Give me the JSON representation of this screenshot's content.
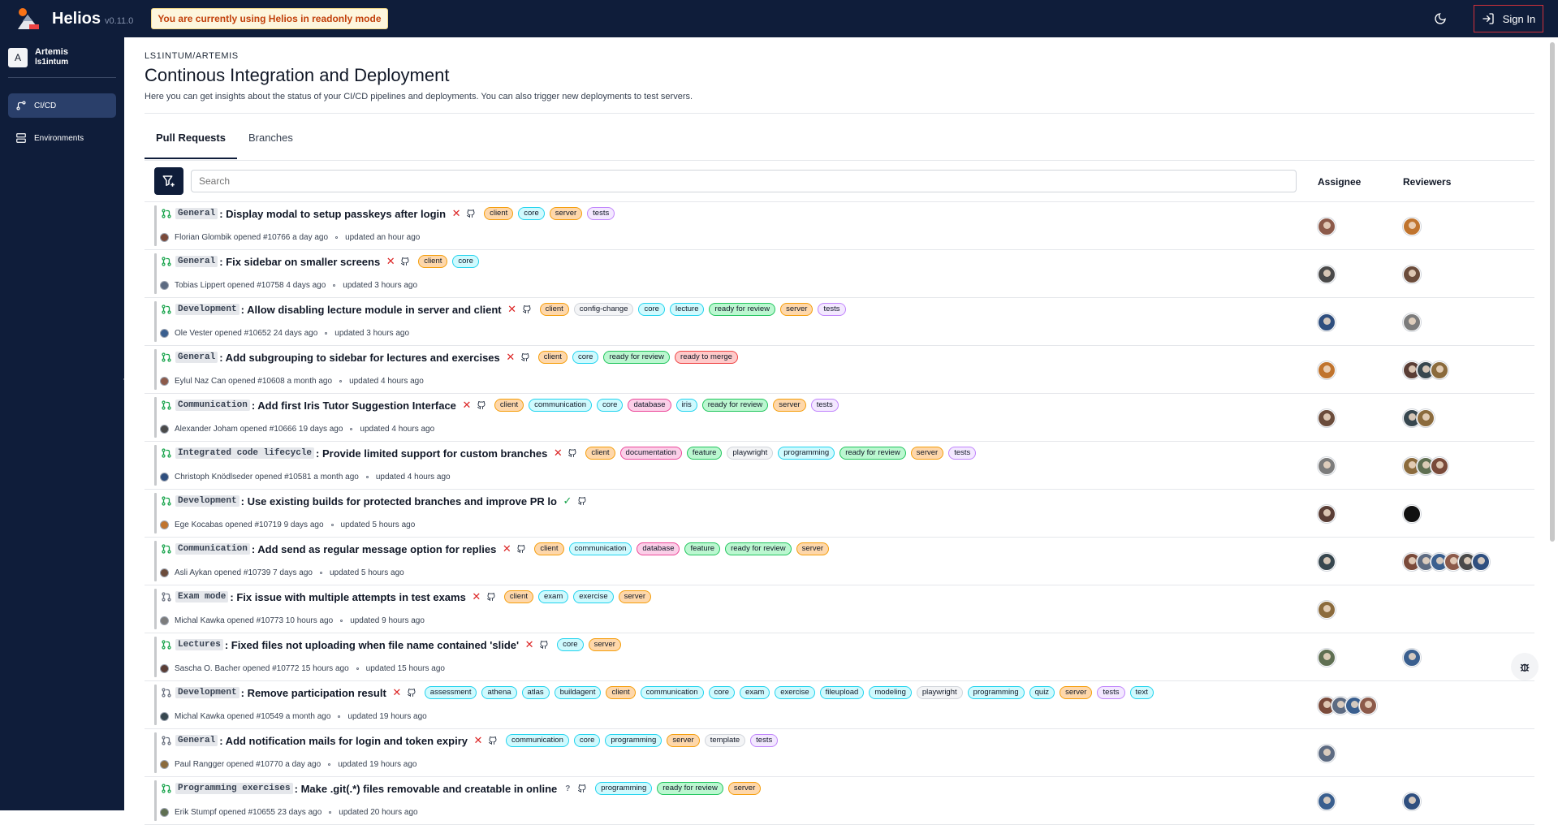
{
  "app": {
    "name": "Helios",
    "version": "v0.11.0",
    "readonly_banner": "You are currently using Helios in readonly mode",
    "signin_label": "Sign In"
  },
  "sidebar": {
    "user_initial": "A",
    "repo_name": "Artemis",
    "repo_owner": "ls1intum",
    "items": [
      {
        "label": "CI/CD",
        "icon": "git-branch-icon",
        "active": true
      },
      {
        "label": "Environments",
        "icon": "server-icon",
        "active": false
      }
    ]
  },
  "page": {
    "breadcrumb": "LS1INTUM/ARTEMIS",
    "title": "Continous Integration and Deployment",
    "description": "Here you can get insights about the status of your CI/CD pipelines and deployments. You can also trigger new deployments to test servers.",
    "tabs": [
      "Pull Requests",
      "Branches"
    ],
    "search_placeholder": "Search",
    "col_assignee": "Assignee",
    "col_reviewers": "Reviewers"
  },
  "label_colors": {
    "client": "#fed7aa",
    "core": "#cffafe",
    "server": "#fed7aa",
    "tests": "#f3e8ff",
    "config-change": "#f3f4f6",
    "lecture": "#cffafe",
    "ready for review": "#bbf7d0",
    "ready to merge": "#fecaca",
    "communication": "#cffafe",
    "database": "#fbcfe8",
    "iris": "#cffafe",
    "documentation": "#fbcfe8",
    "feature": "#bbf7d0",
    "playwright": "#f3f4f6",
    "programming": "#cffafe",
    "exam": "#cffafe",
    "exercise": "#cffafe",
    "assessment": "#cffafe",
    "athena": "#cffafe",
    "atlas": "#cffafe",
    "buildagent": "#cffafe",
    "fileupload": "#cffafe",
    "modeling": "#cffafe",
    "quiz": "#cffafe",
    "text": "#cffafe",
    "template": "#f3f4f6"
  },
  "pull_requests": [
    {
      "scope": "General",
      "title": ": Display modal to setup passkeys after login",
      "status": "fail",
      "labels": [
        "client",
        "core",
        "server",
        "tests"
      ],
      "author": "Florian Glombik",
      "number": "#10766",
      "opened": "a day ago",
      "updated": "updated an hour ago",
      "draft": false,
      "assignees": 1,
      "reviewers": 1
    },
    {
      "scope": "General",
      "title": ": Fix sidebar on smaller screens",
      "status": "fail",
      "labels": [
        "client",
        "core"
      ],
      "author": "Tobias Lippert",
      "number": "#10758",
      "opened": "4 days ago",
      "updated": "updated 3 hours ago",
      "draft": false,
      "assignees": 1,
      "reviewers": 1
    },
    {
      "scope": "Development",
      "title": ": Allow disabling lecture module in server and client",
      "status": "fail",
      "labels": [
        "client",
        "config-change",
        "core",
        "lecture",
        "ready for review",
        "server",
        "tests"
      ],
      "author": "Ole Vester",
      "number": "#10652",
      "opened": "24 days ago",
      "updated": "updated 3 hours ago",
      "draft": false,
      "assignees": 1,
      "reviewers": 1
    },
    {
      "scope": "General",
      "title": ": Add subgrouping to sidebar for lectures and exercises",
      "status": "fail",
      "labels": [
        "client",
        "core",
        "ready for review",
        "ready to merge"
      ],
      "author": "Eylul Naz Can",
      "number": "#10608",
      "opened": "a month ago",
      "updated": "updated 4 hours ago",
      "draft": false,
      "assignees": 1,
      "reviewers": 3
    },
    {
      "scope": "Communication",
      "title": ": Add first Iris Tutor Suggestion Interface",
      "status": "fail",
      "labels": [
        "client",
        "communication",
        "core",
        "database",
        "iris",
        "ready for review",
        "server",
        "tests"
      ],
      "author": "Alexander Joham",
      "number": "#10666",
      "opened": "19 days ago",
      "updated": "updated 4 hours ago",
      "draft": false,
      "assignees": 1,
      "reviewers": 2
    },
    {
      "scope": "Integrated code lifecycle",
      "title": ": Provide limited support for custom branches",
      "status": "fail",
      "labels": [
        "client",
        "documentation",
        "feature",
        "playwright",
        "programming",
        "ready for review",
        "server",
        "tests"
      ],
      "author": "Christoph Knödlseder",
      "number": "#10581",
      "opened": "a month ago",
      "updated": "updated 4 hours ago",
      "draft": false,
      "assignees": 1,
      "reviewers": 3
    },
    {
      "scope": "Development",
      "title": ": Use existing builds for protected branches and improve PR lo",
      "status": "ok",
      "labels": [],
      "author": "Ege Kocabas",
      "number": "#10719",
      "opened": "9 days ago",
      "updated": "updated 5 hours ago",
      "draft": false,
      "assignees": 1,
      "reviewers": 1
    },
    {
      "scope": "Communication",
      "title": ": Add send as regular message option for replies",
      "status": "fail",
      "labels": [
        "client",
        "communication",
        "database",
        "feature",
        "ready for review",
        "server"
      ],
      "author": "Asli Aykan",
      "number": "#10739",
      "opened": "7 days ago",
      "updated": "updated 5 hours ago",
      "draft": false,
      "assignees": 1,
      "reviewers": 6
    },
    {
      "scope": "Exam mode",
      "title": ": Fix issue with multiple attempts in test exams",
      "status": "fail",
      "labels": [
        "client",
        "exam",
        "exercise",
        "server"
      ],
      "author": "Michal Kawka",
      "number": "#10773",
      "opened": "10 hours ago",
      "updated": "updated 9 hours ago",
      "draft": true,
      "assignees": 1,
      "reviewers": 0
    },
    {
      "scope": "Lectures",
      "title": ": Fixed files not uploading when file name contained 'slide'",
      "status": "fail",
      "labels": [
        "core",
        "server"
      ],
      "author": "Sascha O. Bacher",
      "number": "#10772",
      "opened": "15 hours ago",
      "updated": "updated 15 hours ago",
      "draft": false,
      "assignees": 1,
      "reviewers": 1
    },
    {
      "scope": "Development",
      "title": ": Remove participation result",
      "status": "fail",
      "labels": [
        "assessment",
        "athena",
        "atlas",
        "buildagent",
        "client",
        "communication",
        "core",
        "exam",
        "exercise",
        "fileupload",
        "modeling",
        "playwright",
        "programming",
        "quiz",
        "server",
        "tests",
        "text"
      ],
      "author": "Michal Kawka",
      "number": "#10549",
      "opened": "a month ago",
      "updated": "updated 19 hours ago",
      "draft": true,
      "assignees": 4,
      "reviewers": 0
    },
    {
      "scope": "General",
      "title": ": Add notification mails for login and token expiry",
      "status": "fail",
      "labels": [
        "communication",
        "core",
        "programming",
        "server",
        "template",
        "tests"
      ],
      "author": "Paul Rangger",
      "number": "#10770",
      "opened": "a day ago",
      "updated": "updated 19 hours ago",
      "draft": true,
      "assignees": 1,
      "reviewers": 0
    },
    {
      "scope": "Programming exercises",
      "title": ": Make .git(.*) files removable and creatable in online",
      "status": "pending",
      "labels": [
        "programming",
        "ready for review",
        "server"
      ],
      "author": "Erik Stumpf",
      "number": "#10655",
      "opened": "23 days ago",
      "updated": "updated 20 hours ago",
      "draft": false,
      "assignees": 1,
      "reviewers": 1
    }
  ]
}
